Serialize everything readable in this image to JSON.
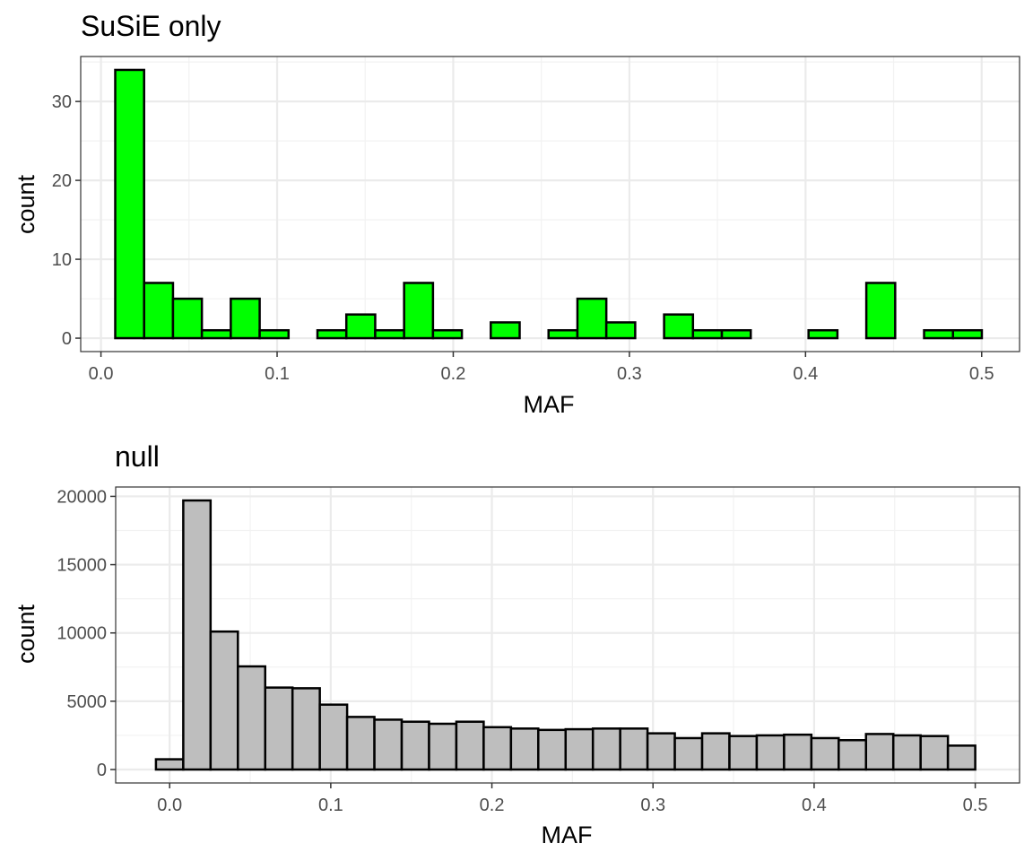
{
  "chart_data": [
    {
      "type": "bar",
      "title": "SuSiE only",
      "xlabel": "MAF",
      "ylabel": "count",
      "fill": "#00ff00",
      "bin_start": 0.0081,
      "bin_width": 0.0164,
      "values": [
        34,
        7,
        5,
        1,
        5,
        1,
        0,
        1,
        3,
        1,
        7,
        1,
        0,
        2,
        0,
        1,
        5,
        2,
        0,
        3,
        1,
        1,
        0,
        0,
        1,
        0,
        7,
        0,
        1,
        1
      ],
      "xlim": [
        -0.0115,
        0.5215
      ],
      "ylim": [
        -1.7,
        35.7
      ],
      "x_ticks": [
        0.0,
        0.1,
        0.2,
        0.3,
        0.4,
        0.5
      ],
      "x_tick_labels": [
        "0.0",
        "0.1",
        "0.2",
        "0.3",
        "0.4",
        "0.5"
      ],
      "y_ticks": [
        0,
        10,
        20,
        30
      ],
      "y_tick_labels": [
        "0",
        "10",
        "20",
        "30"
      ],
      "grid": true
    },
    {
      "type": "bar",
      "title": "null",
      "xlabel": "MAF",
      "ylabel": "count",
      "fill": "#bebebe",
      "bin_start": -0.0085,
      "bin_width": 0.01695,
      "values": [
        750,
        19700,
        10100,
        7550,
        6000,
        5950,
        4750,
        3850,
        3650,
        3500,
        3350,
        3500,
        3100,
        3000,
        2900,
        2950,
        3000,
        3000,
        2650,
        2300,
        2650,
        2450,
        2500,
        2550,
        2300,
        2150,
        2600,
        2500,
        2450,
        1750
      ],
      "xlim": [
        -0.0335,
        0.5275
      ],
      "ylim": [
        -985,
        20685
      ],
      "x_ticks": [
        0.0,
        0.1,
        0.2,
        0.3,
        0.4,
        0.5
      ],
      "x_tick_labels": [
        "0.0",
        "0.1",
        "0.2",
        "0.3",
        "0.4",
        "0.5"
      ],
      "y_ticks": [
        0,
        5000,
        10000,
        15000,
        20000
      ],
      "y_tick_labels": [
        "0",
        "5000",
        "10000",
        "15000",
        "20000"
      ],
      "grid": true
    }
  ]
}
